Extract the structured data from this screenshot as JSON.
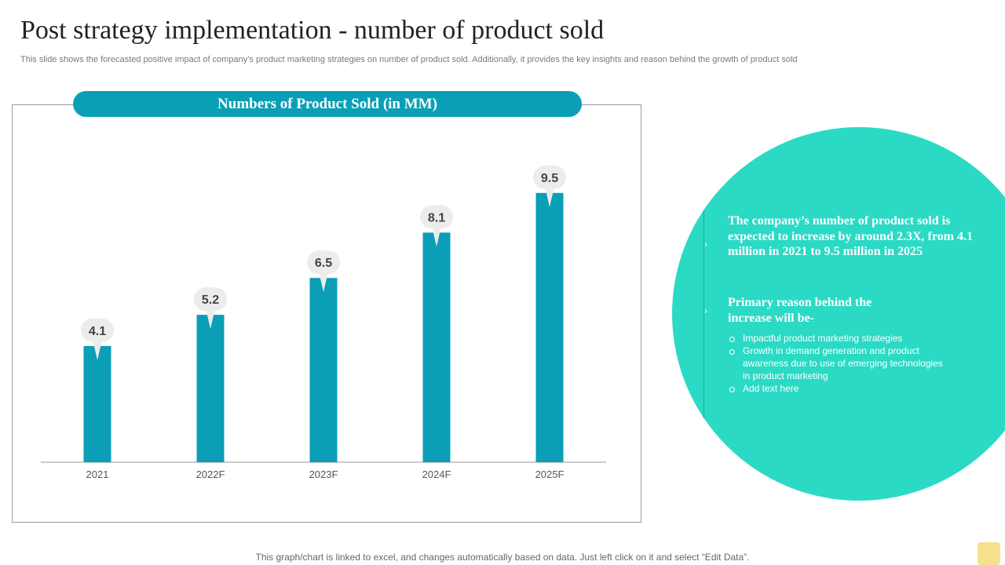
{
  "page": {
    "title": "Post strategy implementation - number of product sold",
    "subtitle": "This slide shows the forecasted positive impact of company’s product marketing strategies on number of product sold. Additionally, it provides the key insights and reason behind the growth of product sold",
    "footer": "This graph/chart is linked to excel,  and changes automatically based on data. Just left click on it and select “Edit Data”."
  },
  "colors": {
    "bar": "#0a9fb6",
    "label_bubble": "#ececec",
    "circle": "#2adac5"
  },
  "chart_data": {
    "type": "bar",
    "title": "Numbers of Product Sold (in MM)",
    "categories": [
      "2021",
      "2022F",
      "2023F",
      "2024F",
      "2025F"
    ],
    "values": [
      4.1,
      5.2,
      6.5,
      8.1,
      9.5
    ],
    "xlabel": "",
    "ylabel": "",
    "ylim": [
      0,
      11.6
    ],
    "grid": false,
    "legend": "none"
  },
  "insights": {
    "point1": "The company’s number of product sold is expected to increase by around 2.3X,  from 4.1 million in 2021 to 9.5 million in 2025",
    "point2": "Primary reason behind the increase will be-",
    "bullets": [
      "Impactful product marketing strategies",
      "Growth in demand generation and product awareness due to use of emerging technologies in product marketing",
      "Add text here"
    ]
  }
}
